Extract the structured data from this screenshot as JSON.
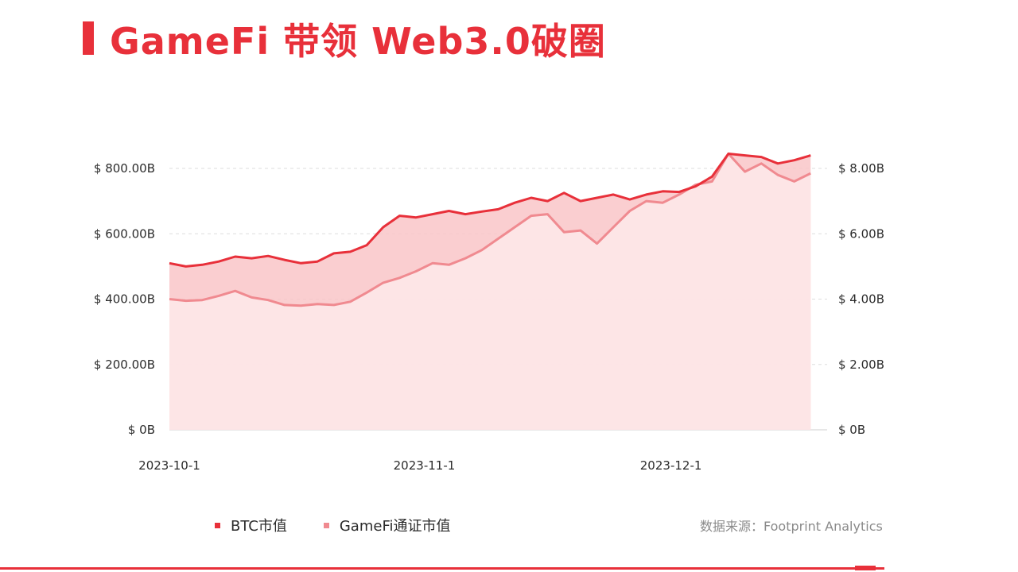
{
  "title": "GameFi 带领 Web3.0破圈",
  "source": "数据来源：Footprint Analytics",
  "colors": {
    "accent": "#e8303a",
    "btc_line": "#e8303a",
    "btc_fill": "#f9c5c8",
    "gamefi_line": "#f08a90",
    "gamefi_fill": "#fde6e7",
    "grid": "#dddddd"
  },
  "chart_data": {
    "type": "area",
    "title": "",
    "x": [
      "2023-10-01",
      "2023-10-03",
      "2023-10-05",
      "2023-10-07",
      "2023-10-09",
      "2023-10-11",
      "2023-10-13",
      "2023-10-15",
      "2023-10-17",
      "2023-10-19",
      "2023-10-21",
      "2023-10-23",
      "2023-10-25",
      "2023-10-27",
      "2023-10-29",
      "2023-10-31",
      "2023-11-02",
      "2023-11-04",
      "2023-11-06",
      "2023-11-08",
      "2023-11-10",
      "2023-11-12",
      "2023-11-14",
      "2023-11-16",
      "2023-11-18",
      "2023-11-20",
      "2023-11-22",
      "2023-11-24",
      "2023-11-26",
      "2023-11-28",
      "2023-11-30",
      "2023-12-02",
      "2023-12-04",
      "2023-12-06",
      "2023-12-08",
      "2023-12-10",
      "2023-12-12",
      "2023-12-14",
      "2023-12-16",
      "2023-12-18"
    ],
    "x_ticks": [
      "2023-10-1",
      "2023-11-1",
      "2023-12-1"
    ],
    "x_tick_dates": [
      "2023-10-01",
      "2023-11-01",
      "2023-12-01"
    ],
    "xlim": [
      "2023-10-01",
      "2023-12-20"
    ],
    "y_left": {
      "ticks": [
        "$ 0B",
        "$ 200.00B",
        "$ 400.00B",
        "$ 600.00B",
        "$ 800.00B"
      ],
      "ylim": [
        0,
        800
      ]
    },
    "y_right": {
      "ticks": [
        "$ 0B",
        "$ 2.00B",
        "$ 4.00B",
        "$ 6.00B",
        "$ 8.00B"
      ],
      "ylim": [
        0,
        8
      ]
    },
    "grid": true,
    "legend_position": "bottom-left",
    "series": [
      {
        "name": "BTC市值",
        "axis": "left",
        "values": [
          510,
          500,
          505,
          515,
          530,
          525,
          532,
          520,
          510,
          515,
          540,
          545,
          565,
          620,
          655,
          650,
          660,
          670,
          660,
          668,
          675,
          695,
          710,
          700,
          725,
          700,
          710,
          720,
          705,
          720,
          730,
          728,
          745,
          775,
          845,
          840,
          835,
          815,
          825,
          840
        ]
      },
      {
        "name": "GameFi通证市值",
        "axis": "right",
        "values": [
          4.0,
          3.95,
          3.97,
          4.1,
          4.25,
          4.05,
          3.97,
          3.82,
          3.8,
          3.85,
          3.82,
          3.92,
          4.2,
          4.5,
          4.65,
          4.85,
          5.1,
          5.05,
          5.25,
          5.5,
          5.85,
          6.2,
          6.55,
          6.6,
          6.05,
          6.1,
          5.7,
          6.2,
          6.7,
          7.0,
          6.95,
          7.2,
          7.5,
          7.6,
          8.45,
          7.9,
          8.15,
          7.8,
          7.6,
          7.85
        ]
      }
    ]
  }
}
